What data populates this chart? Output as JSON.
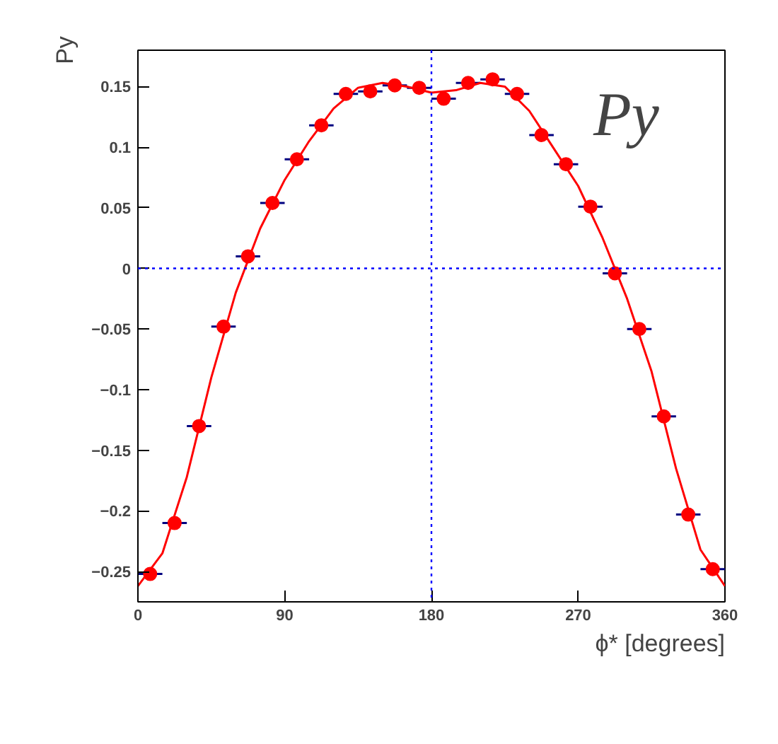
{
  "chart_data": {
    "type": "scatter",
    "xlabel": "ϕ* [degrees]",
    "ylabel": "Py",
    "annotations": [
      "Py"
    ],
    "xlim": [
      0,
      360
    ],
    "ylim": [
      -0.275,
      0.18
    ],
    "xticks": [
      0,
      90,
      180,
      270,
      360
    ],
    "yticks": [
      -0.25,
      -0.2,
      -0.15,
      -0.1,
      -0.05,
      0,
      0.05,
      0.1,
      0.15
    ],
    "grid": false,
    "ref_lines": [
      {
        "axis": "x",
        "value": 180,
        "color": "#0000ff",
        "line_style": "dotted"
      },
      {
        "axis": "y",
        "value": 0,
        "color": "#0000ff",
        "line_style": "dotted"
      }
    ],
    "series": [
      {
        "marker": "circle",
        "color": "#ff0000",
        "x": [
          7.5,
          22.5,
          37.5,
          52.5,
          67.5,
          82.5,
          97.5,
          112.5,
          127.5,
          142.5,
          157.5,
          172.5,
          187.5,
          202.5,
          217.5,
          232.5,
          247.5,
          262.5,
          277.5,
          292.5,
          307.5,
          322.5,
          337.5,
          352.5
        ],
        "values": [
          -0.252,
          -0.21,
          -0.13,
          -0.048,
          0.01,
          0.054,
          0.09,
          0.118,
          0.144,
          0.146,
          0.151,
          0.149,
          0.14,
          0.153,
          0.156,
          0.144,
          0.11,
          0.086,
          0.051,
          -0.004,
          -0.05,
          -0.122,
          -0.203,
          -0.248
        ],
        "xerrors": [
          7.5,
          7.5,
          7.5,
          7.5,
          7.5,
          7.5,
          7.5,
          7.5,
          7.5,
          7.5,
          7.5,
          7.5,
          7.5,
          7.5,
          7.5,
          7.5,
          7.5,
          7.5,
          7.5,
          7.5,
          7.5,
          7.5,
          7.5,
          7.5
        ]
      },
      {
        "type": "line",
        "color": "#ff0000",
        "x": [
          0,
          15,
          30,
          45,
          60,
          75,
          90,
          105,
          120,
          135,
          150,
          165,
          180,
          195,
          210,
          225,
          240,
          255,
          270,
          285,
          300,
          315,
          330,
          345,
          360
        ],
        "values": [
          -0.262,
          -0.235,
          -0.172,
          -0.09,
          -0.02,
          0.033,
          0.073,
          0.105,
          0.132,
          0.149,
          0.153,
          0.15,
          0.145,
          0.147,
          0.153,
          0.15,
          0.13,
          0.099,
          0.068,
          0.025,
          -0.025,
          -0.085,
          -0.165,
          -0.232,
          -0.262
        ]
      }
    ]
  }
}
